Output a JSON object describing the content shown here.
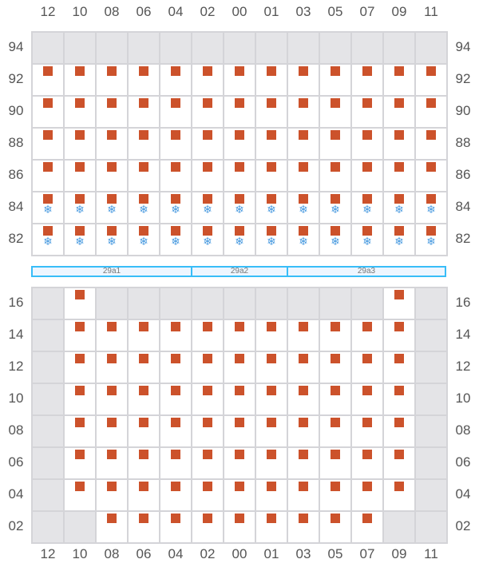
{
  "columns": [
    "12",
    "10",
    "08",
    "06",
    "04",
    "02",
    "00",
    "01",
    "03",
    "05",
    "07",
    "09",
    "11"
  ],
  "colors": {
    "seat": "#cc522b",
    "snowflake": "#4a9be0",
    "unavailable": "#e4e4e7",
    "section_border": "#38bdf8"
  },
  "upper": {
    "rows": [
      "94",
      "92",
      "90",
      "88",
      "86",
      "84",
      "82"
    ],
    "cells": [
      "ggggggggggggg",
      "sssssssssssss",
      "sssssssssssss",
      "sssssssssssss",
      "sssssssssssss",
      "fffffffffffff",
      "fffffffffffff"
    ]
  },
  "sections": [
    {
      "label": "29a1",
      "span": 5
    },
    {
      "label": "29a2",
      "span": 3
    },
    {
      "label": "29a3",
      "span": 5
    }
  ],
  "lower": {
    "rows": [
      "16",
      "14",
      "12",
      "10",
      "08",
      "06",
      "04",
      "02"
    ],
    "cells": [
      "gsgggggggggsg",
      "gsssssssssssg",
      "gsssssssssssg",
      "gsssssssssssg",
      "gsssssssssssg",
      "gsssssssssssg",
      "gsssssssssssg",
      "ggsssssssssgg"
    ]
  },
  "legend_note": "s = seat, f = seat with snowflake icon, g = unavailable",
  "icons": {
    "seat": "square-seat-icon",
    "snowflake": "snowflake-icon"
  }
}
